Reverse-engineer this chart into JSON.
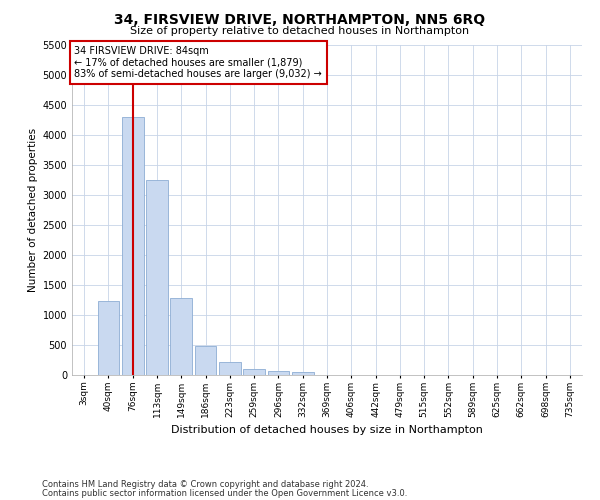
{
  "title": "34, FIRSVIEW DRIVE, NORTHAMPTON, NN5 6RQ",
  "subtitle": "Size of property relative to detached houses in Northampton",
  "xlabel": "Distribution of detached houses by size in Northampton",
  "ylabel": "Number of detached properties",
  "bar_labels": [
    "3sqm",
    "40sqm",
    "76sqm",
    "113sqm",
    "149sqm",
    "186sqm",
    "223sqm",
    "259sqm",
    "296sqm",
    "332sqm",
    "369sqm",
    "406sqm",
    "442sqm",
    "479sqm",
    "515sqm",
    "552sqm",
    "589sqm",
    "625sqm",
    "662sqm",
    "698sqm",
    "735sqm"
  ],
  "bar_values": [
    0,
    1230,
    4300,
    3250,
    1280,
    480,
    210,
    100,
    70,
    50,
    0,
    0,
    0,
    0,
    0,
    0,
    0,
    0,
    0,
    0,
    0
  ],
  "bar_color": "#c9d9f0",
  "bar_edge_color": "#8eadd4",
  "vline_color": "#cc0000",
  "vline_bin": 2,
  "annotation_line1": "34 FIRSVIEW DRIVE: 84sqm",
  "annotation_line2": "← 17% of detached houses are smaller (1,879)",
  "annotation_line3": "83% of semi-detached houses are larger (9,032) →",
  "annotation_box_edge_color": "#cc0000",
  "annotation_box_face_color": "#ffffff",
  "ylim_max": 5500,
  "yticks": [
    0,
    500,
    1000,
    1500,
    2000,
    2500,
    3000,
    3500,
    4000,
    4500,
    5000,
    5500
  ],
  "footnote1": "Contains HM Land Registry data © Crown copyright and database right 2024.",
  "footnote2": "Contains public sector information licensed under the Open Government Licence v3.0.",
  "bg_color": "#ffffff",
  "grid_color": "#c8d4e8"
}
